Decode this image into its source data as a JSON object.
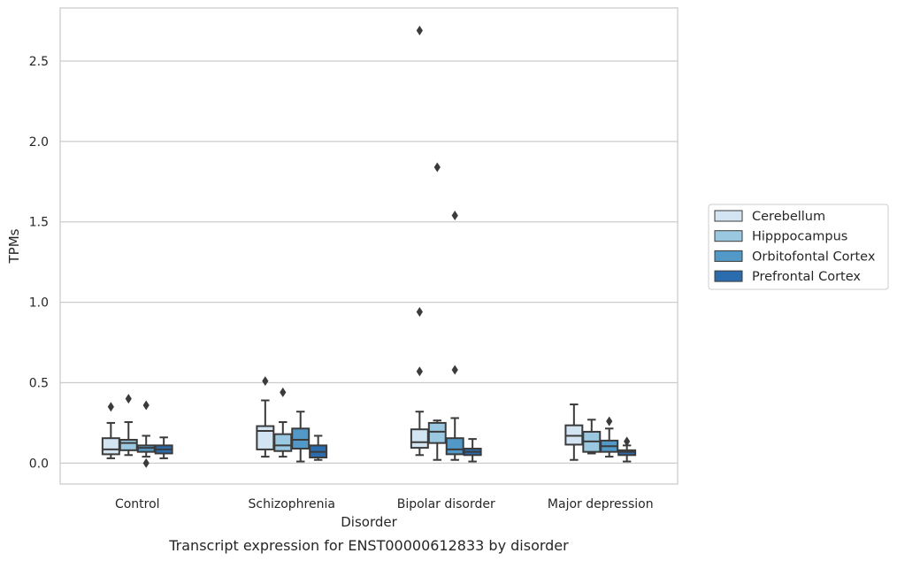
{
  "chart_data": {
    "type": "boxplot",
    "caption": "Transcript expression for ENST00000612833 by disorder",
    "xlabel": "Disorder",
    "ylabel": "TPMs",
    "ylim": [
      -0.13,
      2.83
    ],
    "yticks": [
      0.0,
      0.5,
      1.0,
      1.5,
      2.0,
      2.5
    ],
    "ytick_labels": [
      "0.0",
      "0.5",
      "1.0",
      "1.5",
      "2.0",
      "2.5"
    ],
    "grid": "horizontal",
    "legend_position": "right-center",
    "categories": [
      "Control",
      "Schizophrenia",
      "Bipolar disorder",
      "Major depression"
    ],
    "series": [
      {
        "name": "Cerebellum",
        "color": "#d3e4f3",
        "boxes": [
          {
            "whislo": 0.03,
            "q1": 0.055,
            "med": 0.085,
            "q3": 0.155,
            "whishi": 0.25,
            "fliers": [
              0.35
            ]
          },
          {
            "whislo": 0.04,
            "q1": 0.085,
            "med": 0.2,
            "q3": 0.23,
            "whishi": 0.39,
            "fliers": [
              0.51
            ]
          },
          {
            "whislo": 0.05,
            "q1": 0.095,
            "med": 0.13,
            "q3": 0.21,
            "whishi": 0.32,
            "fliers": [
              0.57,
              0.94,
              2.69
            ]
          },
          {
            "whislo": 0.02,
            "q1": 0.115,
            "med": 0.17,
            "q3": 0.235,
            "whishi": 0.365,
            "fliers": []
          }
        ]
      },
      {
        "name": "Hipppocampus",
        "color": "#9ac8e0",
        "boxes": [
          {
            "whislo": 0.05,
            "q1": 0.08,
            "med": 0.125,
            "q3": 0.145,
            "whishi": 0.255,
            "fliers": [
              0.4
            ]
          },
          {
            "whislo": 0.04,
            "q1": 0.075,
            "med": 0.11,
            "q3": 0.18,
            "whishi": 0.255,
            "fliers": [
              0.44
            ]
          },
          {
            "whislo": 0.02,
            "q1": 0.125,
            "med": 0.195,
            "q3": 0.25,
            "whishi": 0.265,
            "fliers": [
              1.84
            ]
          },
          {
            "whislo": 0.06,
            "q1": 0.07,
            "med": 0.135,
            "q3": 0.195,
            "whishi": 0.27,
            "fliers": []
          }
        ]
      },
      {
        "name": "Orbitofontal Cortex",
        "color": "#5299c7",
        "boxes": [
          {
            "whislo": 0.04,
            "q1": 0.07,
            "med": 0.095,
            "q3": 0.11,
            "whishi": 0.17,
            "fliers": [
              0.0,
              0.36
            ]
          },
          {
            "whislo": 0.01,
            "q1": 0.09,
            "med": 0.145,
            "q3": 0.215,
            "whishi": 0.32,
            "fliers": []
          },
          {
            "whislo": 0.02,
            "q1": 0.055,
            "med": 0.085,
            "q3": 0.155,
            "whishi": 0.28,
            "fliers": [
              0.58,
              1.54
            ]
          },
          {
            "whislo": 0.04,
            "q1": 0.07,
            "med": 0.105,
            "q3": 0.14,
            "whishi": 0.215,
            "fliers": [
              0.26
            ]
          }
        ]
      },
      {
        "name": "Prefrontal Cortex",
        "color": "#2a6cad",
        "boxes": [
          {
            "whislo": 0.03,
            "q1": 0.06,
            "med": 0.085,
            "q3": 0.11,
            "whishi": 0.16,
            "fliers": []
          },
          {
            "whislo": 0.02,
            "q1": 0.035,
            "med": 0.07,
            "q3": 0.11,
            "whishi": 0.17,
            "fliers": []
          },
          {
            "whislo": 0.01,
            "q1": 0.05,
            "med": 0.07,
            "q3": 0.09,
            "whishi": 0.15,
            "fliers": []
          },
          {
            "whislo": 0.01,
            "q1": 0.05,
            "med": 0.07,
            "q3": 0.08,
            "whishi": 0.11,
            "fliers": [
              0.135
            ]
          }
        ]
      }
    ]
  }
}
